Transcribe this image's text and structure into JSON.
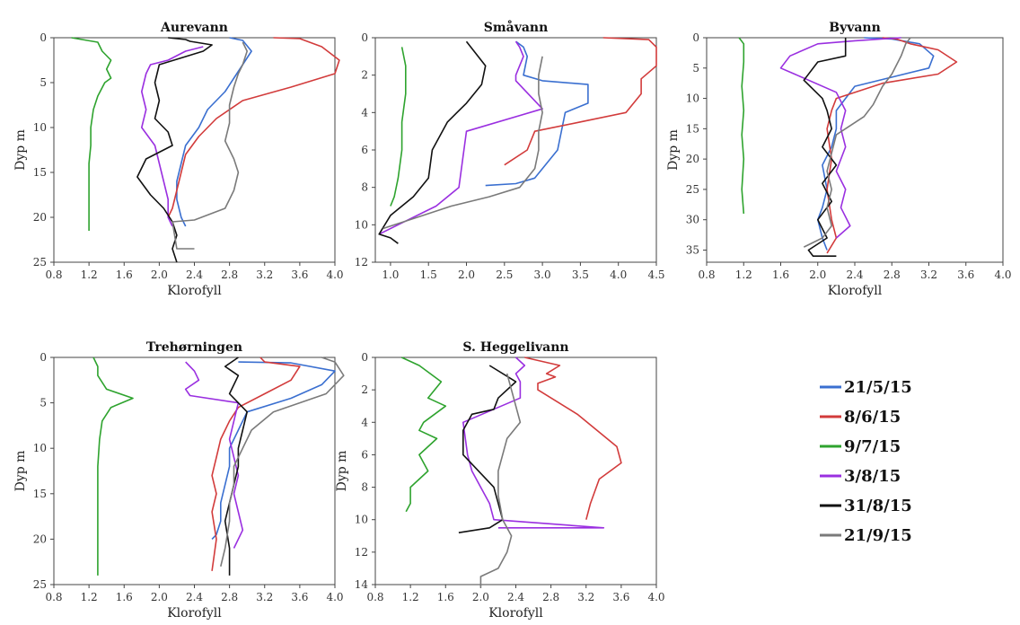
{
  "legend": [
    {
      "label": "21/5/15",
      "color": "#3a6fd0"
    },
    {
      "label": "8/6/15",
      "color": "#d23b3b"
    },
    {
      "label": "9/7/15",
      "color": "#2ea32e"
    },
    {
      "label": "3/8/15",
      "color": "#9a2fe0"
    },
    {
      "label": "31/8/15",
      "color": "#111111"
    },
    {
      "label": "21/9/15",
      "color": "#7a7a7a"
    }
  ],
  "chart_data": [
    {
      "type": "line",
      "title": "Aurevann",
      "xlabel": "Klorofyll",
      "ylabel": "Dyp m",
      "xlim": [
        0.8,
        4.0
      ],
      "ylim": [
        0,
        25
      ],
      "xticks": [
        "0.8",
        "1.2",
        "1.6",
        "2.0",
        "2.4",
        "2.8",
        "3.2",
        "3.6",
        "4.0"
      ],
      "yticks": [
        "0",
        "5",
        "10",
        "15",
        "20",
        "25"
      ],
      "series": [
        {
          "date": "21/5/15",
          "x": [
            2.8,
            2.95,
            3.05,
            2.95,
            2.85,
            2.75,
            2.55,
            2.45,
            2.3,
            2.25,
            2.2,
            2.2,
            2.25,
            2.3
          ],
          "y": [
            0,
            0.3,
            1.5,
            3,
            4.5,
            6,
            8,
            10,
            12,
            14,
            16,
            18,
            20,
            21
          ]
        },
        {
          "date": "8/6/15",
          "x": [
            3.3,
            3.6,
            3.85,
            4.05,
            4.0,
            3.5,
            2.95,
            2.65,
            2.45,
            2.3,
            2.25,
            2.2,
            2.15,
            2.1
          ],
          "y": [
            0,
            0.1,
            1,
            2.5,
            4,
            5.5,
            7,
            9,
            11,
            13,
            15,
            17,
            19,
            20
          ]
        },
        {
          "date": "9/7/15",
          "x": [
            1.0,
            1.3,
            1.35,
            1.45,
            1.4,
            1.45,
            1.38,
            1.3,
            1.25,
            1.22,
            1.22,
            1.2,
            1.2,
            1.2
          ],
          "y": [
            0,
            0.5,
            1.5,
            2.5,
            3.5,
            4.5,
            5,
            6.5,
            8,
            10,
            12,
            14,
            17,
            21.5
          ]
        },
        {
          "date": "3/8/15",
          "x": [
            2.5,
            2.3,
            2.1,
            1.9,
            1.85,
            1.8,
            1.85,
            1.8,
            1.95,
            2.0,
            2.05,
            2.1,
            2.1,
            2.15
          ],
          "y": [
            1,
            1.5,
            2.5,
            3,
            4,
            6,
            8,
            10,
            12,
            14,
            16,
            18,
            20,
            21
          ]
        },
        {
          "date": "31/8/15",
          "x": [
            2.1,
            2.3,
            2.35,
            2.6,
            2.5,
            2.0,
            1.95,
            2.0,
            1.95,
            2.1,
            2.15,
            1.85,
            1.75,
            1.9,
            2.05,
            2.15,
            2.2,
            2.15,
            2.2
          ],
          "y": [
            0,
            0.2,
            0.4,
            0.8,
            1.5,
            3,
            5,
            7,
            9,
            10.5,
            12,
            13.5,
            15.5,
            17.5,
            19,
            20.5,
            22,
            23.5,
            25
          ]
        },
        {
          "date": "21/9/15",
          "x": [
            2.95,
            3.0,
            2.95,
            2.9,
            2.85,
            2.8,
            2.8,
            2.75,
            2.85,
            2.9,
            2.85,
            2.75,
            2.4,
            2.15,
            2.2,
            2.4
          ],
          "y": [
            0.5,
            1.5,
            3,
            4,
            5.5,
            7.5,
            9.5,
            11.5,
            13.5,
            15,
            17,
            19,
            20.3,
            20.5,
            23.5,
            23.5
          ]
        }
      ]
    },
    {
      "type": "line",
      "title": "Småvann",
      "xlabel": "",
      "ylabel": "",
      "xlim": [
        0.8,
        4.5
      ],
      "ylim": [
        0,
        12
      ],
      "xticks": [
        "1.0",
        "1.5",
        "2.0",
        "2.5",
        "3.0",
        "3.5",
        "4.0",
        "4.5"
      ],
      "yticks": [
        "0",
        "2",
        "4",
        "6",
        "8",
        "10",
        "12"
      ],
      "series": [
        {
          "date": "21/5/15",
          "x": [
            2.65,
            2.75,
            2.8,
            2.75,
            3.0,
            3.6,
            3.6,
            3.3,
            3.2,
            2.9,
            2.65,
            2.25
          ],
          "y": [
            0.2,
            0.5,
            1.0,
            2.0,
            2.3,
            2.5,
            3.5,
            4.0,
            6.0,
            7.5,
            7.8,
            7.9
          ]
        },
        {
          "date": "8/6/15",
          "x": [
            3.8,
            4.4,
            4.5,
            4.5,
            4.3,
            4.3,
            4.1,
            3.5,
            2.9,
            2.8,
            2.5
          ],
          "y": [
            0.0,
            0.1,
            0.5,
            1.5,
            2.2,
            3.0,
            4.0,
            4.5,
            5.0,
            6.0,
            6.8
          ]
        },
        {
          "date": "9/7/15",
          "x": [
            1.15,
            1.2,
            1.2,
            1.15,
            1.15,
            1.1,
            1.05,
            1.0
          ],
          "y": [
            0.5,
            1.5,
            3,
            4.5,
            6,
            7.5,
            8.5,
            9.0
          ]
        },
        {
          "date": "3/8/15",
          "x": [
            2.65,
            2.7,
            2.75,
            2.7,
            2.65,
            2.65,
            3.0,
            2.0,
            1.95,
            1.9,
            1.6,
            1.1,
            0.85
          ],
          "y": [
            0.2,
            0.5,
            1.0,
            1.5,
            2.0,
            2.3,
            3.8,
            5.0,
            6.5,
            8.0,
            9.0,
            10.0,
            10.5
          ]
        },
        {
          "date": "31/8/15",
          "x": [
            2.0,
            2.25,
            2.2,
            2.0,
            1.75,
            1.55,
            1.5,
            1.3,
            1.0,
            0.85,
            1.0,
            1.1
          ],
          "y": [
            0.2,
            1.5,
            2.5,
            3.5,
            4.5,
            6.0,
            7.5,
            8.5,
            9.5,
            10.5,
            10.7,
            11.0
          ]
        },
        {
          "date": "21/9/15",
          "x": [
            3.0,
            2.95,
            2.95,
            3.0,
            2.95,
            2.95,
            2.9,
            2.7,
            2.3,
            1.8,
            1.2,
            0.9
          ],
          "y": [
            1.0,
            2.0,
            3.0,
            4.0,
            5.0,
            6.0,
            7.0,
            8.0,
            8.5,
            9.0,
            9.8,
            10.2
          ]
        }
      ]
    },
    {
      "type": "line",
      "title": "Byvann",
      "xlabel": "Klorofyll",
      "ylabel": "Dyp m",
      "xlim": [
        0.8,
        4.0
      ],
      "ylim": [
        0,
        37
      ],
      "xticks": [
        "0.8",
        "1.2",
        "1.6",
        "2.0",
        "2.4",
        "2.8",
        "3.2",
        "3.6",
        "4.0"
      ],
      "yticks": [
        "0",
        "5",
        "10",
        "15",
        "20",
        "25",
        "30",
        "35"
      ],
      "series": [
        {
          "date": "21/5/15",
          "x": [
            2.5,
            2.8,
            3.1,
            3.25,
            3.2,
            2.4,
            2.2,
            2.2,
            2.15,
            2.05,
            2.1,
            2.05,
            2.0,
            2.05,
            2.1
          ],
          "y": [
            0,
            0.2,
            1,
            3,
            5,
            8,
            12,
            15,
            18,
            21,
            25,
            28,
            30,
            33,
            35
          ]
        },
        {
          "date": "8/6/15",
          "x": [
            2.7,
            2.85,
            3.0,
            3.3,
            3.5,
            3.3,
            2.7,
            2.2,
            2.15,
            2.1,
            2.15,
            2.1,
            2.15,
            2.2,
            2.1
          ],
          "y": [
            0,
            0.2,
            1,
            2,
            4,
            6,
            7.5,
            10,
            12,
            15,
            20,
            25,
            30,
            33,
            35.5
          ]
        },
        {
          "date": "9/7/15",
          "x": [
            1.15,
            1.2,
            1.2,
            1.18,
            1.2,
            1.18,
            1.2,
            1.18,
            1.2
          ],
          "y": [
            0,
            1,
            4,
            8,
            12,
            16,
            20,
            25,
            29
          ]
        },
        {
          "date": "3/8/15",
          "x": [
            2.9,
            2.4,
            2.0,
            1.7,
            1.6,
            1.75,
            2.2,
            2.3,
            2.25,
            2.3,
            2.2,
            2.3,
            2.25,
            2.35,
            2.2
          ],
          "y": [
            0,
            0.5,
            1,
            3,
            5,
            6,
            9,
            12,
            15,
            18,
            22,
            25,
            28,
            31,
            33
          ]
        },
        {
          "date": "31/8/15",
          "x": [
            2.3,
            2.3,
            2.0,
            1.85,
            2.05,
            2.1,
            2.15,
            2.05,
            2.2,
            2.05,
            2.15,
            2.0,
            2.1,
            1.9,
            1.95,
            2.2
          ],
          "y": [
            0,
            3,
            4,
            7,
            10,
            12,
            15,
            18,
            21,
            24,
            27,
            30,
            33,
            35,
            36,
            36
          ]
        },
        {
          "date": "21/9/15",
          "x": [
            3.0,
            2.95,
            2.9,
            2.8,
            2.7,
            2.6,
            2.5,
            2.2,
            2.15,
            2.1,
            2.15,
            2.1,
            2.15,
            2.05,
            1.85
          ],
          "y": [
            0,
            1,
            3,
            6,
            8,
            11,
            13,
            16,
            19,
            22,
            25,
            28,
            31,
            33,
            34.5
          ]
        }
      ]
    },
    {
      "type": "line",
      "title": "Trehørningen",
      "xlabel": "Klorofyll",
      "ylabel": "Dyp m",
      "xlim": [
        0.8,
        4.0
      ],
      "ylim": [
        0,
        25
      ],
      "xticks": [
        "0.8",
        "1.2",
        "1.6",
        "2.0",
        "2.4",
        "2.8",
        "3.2",
        "3.6",
        "4.0"
      ],
      "yticks": [
        "0",
        "5",
        "10",
        "15",
        "20",
        "25"
      ],
      "series": [
        {
          "date": "21/5/15",
          "x": [
            2.9,
            3.5,
            4.0,
            3.85,
            3.5,
            3.0,
            2.9,
            2.8,
            2.8,
            2.75,
            2.7,
            2.7,
            2.65,
            2.6
          ],
          "y": [
            0.5,
            0.6,
            1.5,
            3,
            4.5,
            6,
            8,
            10,
            12,
            14,
            16,
            18,
            19.5,
            20
          ]
        },
        {
          "date": "8/6/15",
          "x": [
            3.15,
            3.2,
            3.6,
            3.5,
            3.2,
            2.9,
            2.8,
            2.7,
            2.65,
            2.6,
            2.65,
            2.6,
            2.65,
            2.6
          ],
          "y": [
            0,
            0.5,
            1,
            2.5,
            4,
            5.5,
            7,
            9,
            11,
            13,
            15,
            17,
            20,
            23.5
          ]
        },
        {
          "date": "9/7/15",
          "x": [
            1.25,
            1.3,
            1.3,
            1.4,
            1.7,
            1.45,
            1.35,
            1.32,
            1.3,
            1.3,
            1.3,
            1.3
          ],
          "y": [
            0,
            1,
            2,
            3.5,
            4.5,
            5.5,
            7,
            9,
            12,
            15,
            19,
            24
          ]
        },
        {
          "date": "3/8/15",
          "x": [
            2.3,
            2.4,
            2.45,
            2.3,
            2.35,
            2.9,
            2.85,
            2.8,
            2.85,
            2.9,
            2.85,
            2.9,
            2.95,
            2.85
          ],
          "y": [
            0.5,
            1.5,
            2.5,
            3.5,
            4.2,
            5,
            7,
            9,
            11,
            13,
            15,
            17,
            19,
            21
          ]
        },
        {
          "date": "31/8/15",
          "x": [
            2.9,
            2.75,
            2.9,
            2.8,
            3.0,
            2.95,
            2.9,
            2.9,
            2.85,
            2.8,
            2.75,
            2.8,
            2.8
          ],
          "y": [
            0,
            1,
            2,
            4,
            6,
            8,
            10,
            12,
            14,
            16,
            18,
            21,
            24
          ]
        },
        {
          "date": "21/9/15",
          "x": [
            3.85,
            4.0,
            4.1,
            3.9,
            3.3,
            3.05,
            2.95,
            2.85,
            2.85,
            2.8,
            2.8,
            2.75,
            2.7
          ],
          "y": [
            0,
            0.5,
            2,
            4,
            6,
            8,
            10,
            12,
            14,
            16,
            18,
            21,
            23
          ]
        }
      ]
    },
    {
      "type": "line",
      "title": "S. Heggelivann",
      "xlabel": "Klorofyll",
      "ylabel": "Dyp m",
      "xlim": [
        0.8,
        4.0
      ],
      "ylim": [
        0,
        14
      ],
      "xticks": [
        "0.8",
        "1.2",
        "1.6",
        "2.0",
        "2.4",
        "2.8",
        "3.2",
        "3.6",
        "4.0"
      ],
      "yticks": [
        "0",
        "2",
        "4",
        "6",
        "8",
        "10",
        "12",
        "14"
      ],
      "series": [
        {
          "date": "8/6/15",
          "x": [
            2.5,
            2.9,
            2.75,
            2.85,
            2.65,
            2.65,
            3.1,
            3.55,
            3.6,
            3.35,
            3.25,
            3.2
          ],
          "y": [
            0,
            0.5,
            1.0,
            1.2,
            1.6,
            2.0,
            3.5,
            5.5,
            6.5,
            7.5,
            9.0,
            10.0
          ]
        },
        {
          "date": "9/7/15",
          "x": [
            1.1,
            1.3,
            1.55,
            1.4,
            1.6,
            1.35,
            1.3,
            1.5,
            1.3,
            1.4,
            1.2,
            1.2,
            1.15
          ],
          "y": [
            0,
            0.5,
            1.5,
            2.5,
            3.0,
            4.0,
            4.5,
            5.0,
            6.0,
            7.0,
            8.0,
            9.0,
            9.5
          ]
        },
        {
          "date": "3/8/15",
          "x": [
            2.4,
            2.5,
            2.4,
            2.45,
            2.45,
            1.8,
            1.85,
            1.9,
            2.0,
            2.1,
            2.15,
            3.4,
            2.2
          ],
          "y": [
            0,
            0.5,
            1.0,
            1.5,
            2.5,
            4.0,
            6.0,
            7.0,
            8.0,
            9.0,
            10.0,
            10.5,
            10.5
          ]
        },
        {
          "date": "31/8/15",
          "x": [
            2.1,
            2.4,
            2.2,
            2.15,
            1.9,
            1.8,
            1.8,
            2.15,
            2.2,
            2.25,
            2.1,
            1.75
          ],
          "y": [
            0.5,
            1.5,
            2.5,
            3.2,
            3.5,
            4.5,
            6.0,
            8.0,
            9.0,
            10.0,
            10.5,
            10.8
          ]
        },
        {
          "date": "21/9/15",
          "x": [
            2.3,
            2.35,
            2.4,
            2.45,
            2.3,
            2.2,
            2.2,
            2.25,
            2.35,
            2.3,
            2.2,
            2.0,
            2.0
          ],
          "y": [
            1.0,
            2.0,
            3.0,
            4.0,
            5.0,
            7.0,
            8.5,
            10.0,
            11.0,
            12.0,
            13.0,
            13.5,
            14.2
          ]
        }
      ]
    }
  ]
}
